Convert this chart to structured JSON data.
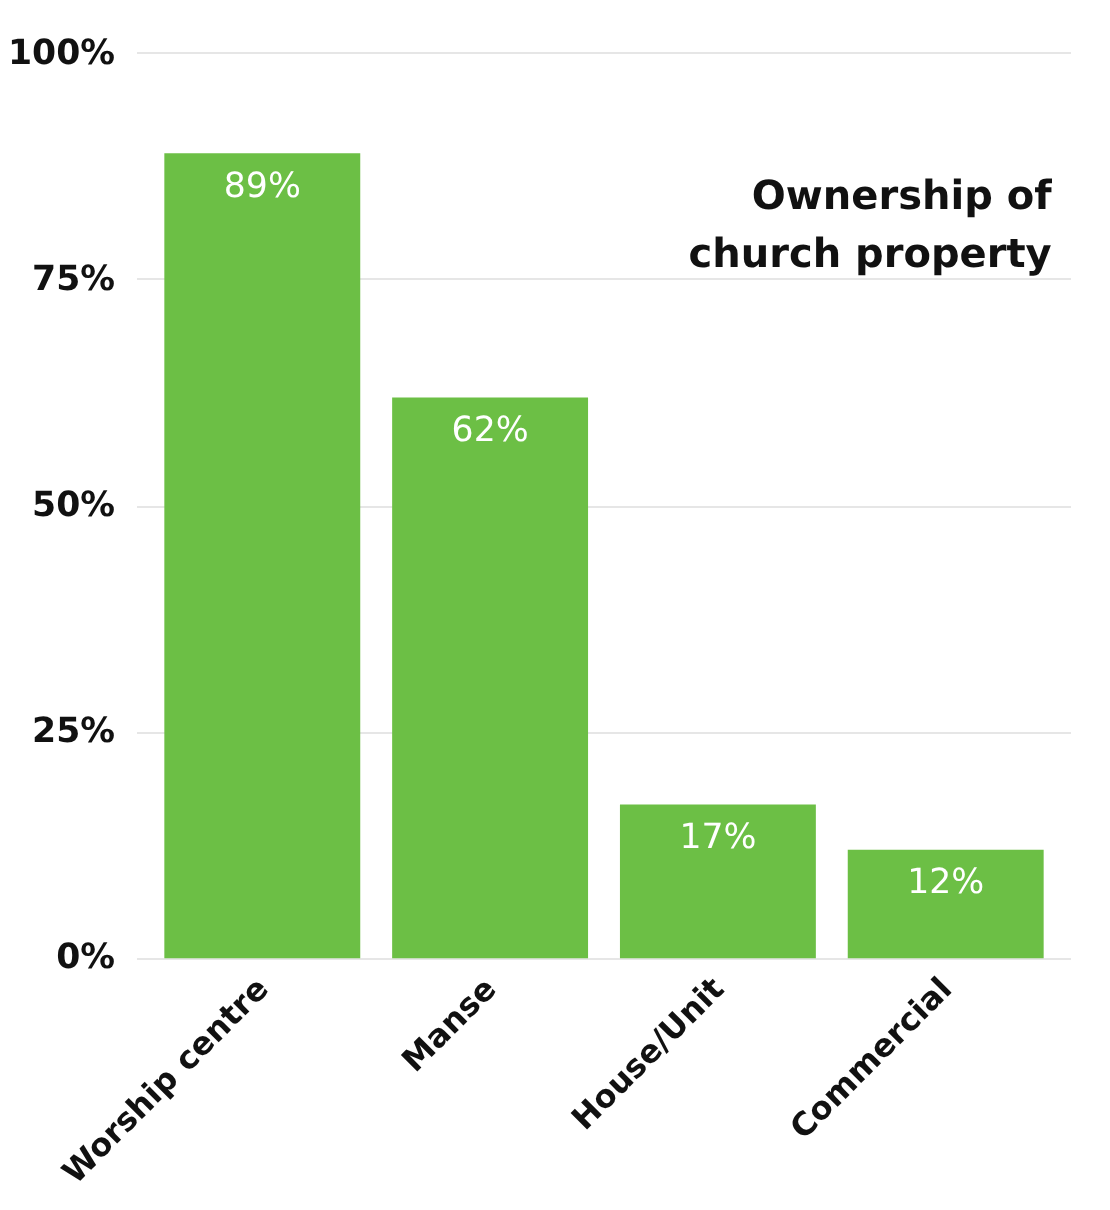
{
  "chart_data": {
    "type": "bar",
    "title": "Ownership of church property",
    "categories": [
      "Worship centre",
      "Manse",
      "House/Unit",
      "Commercial"
    ],
    "values": [
      89,
      62,
      17,
      12
    ],
    "value_labels": [
      "89%",
      "62%",
      "17%",
      "12%"
    ],
    "color": "#6cbf45",
    "ylim": [
      0,
      100
    ],
    "yticks": [
      {
        "value": 0,
        "label": "0%"
      },
      {
        "value": 25,
        "label": "25%"
      },
      {
        "value": 50,
        "label": "50%"
      },
      {
        "value": 75,
        "label": "75%"
      },
      {
        "value": 100,
        "label": "100%"
      }
    ],
    "grid": "y"
  }
}
